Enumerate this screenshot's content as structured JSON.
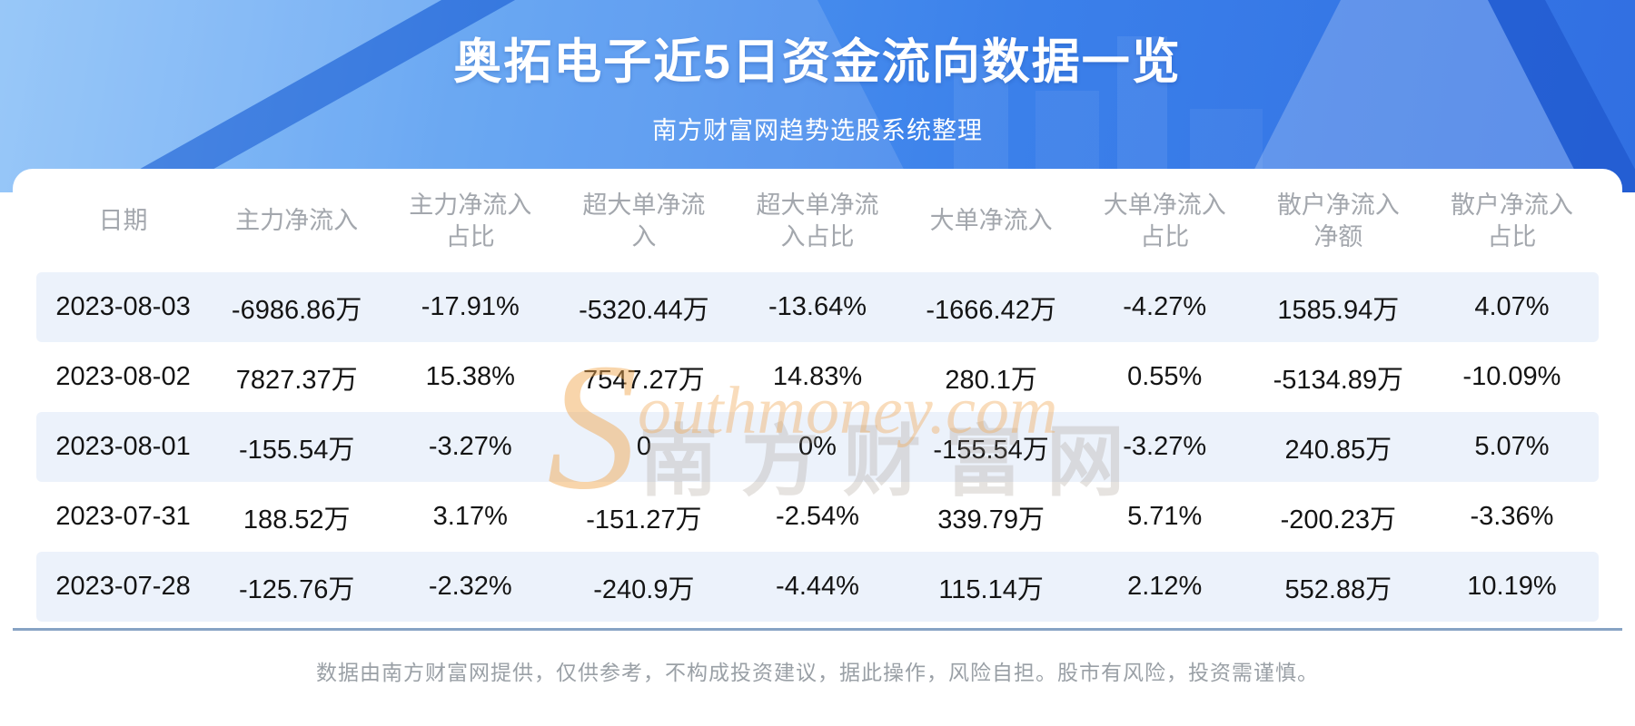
{
  "header": {
    "title": "奥拓电子近5日资金流向数据一览",
    "subtitle": "南方财富网趋势选股系统整理"
  },
  "table": {
    "columns": [
      "日期",
      "主力净流入",
      "主力净流入\n占比",
      "超大单净流\n入",
      "超大单净流\n入占比",
      "大单净流入",
      "大单净流入\n占比",
      "散户净流入\n净额",
      "散户净流入\n占比"
    ],
    "rows": [
      [
        "2023-08-03",
        "-6986.86万",
        "-17.91%",
        "-5320.44万",
        "-13.64%",
        "-1666.42万",
        "-4.27%",
        "1585.94万",
        "4.07%"
      ],
      [
        "2023-08-02",
        "7827.37万",
        "15.38%",
        "7547.27万",
        "14.83%",
        "280.1万",
        "0.55%",
        "-5134.89万",
        "-10.09%"
      ],
      [
        "2023-08-01",
        "-155.54万",
        "-3.27%",
        "0",
        "0%",
        "-155.54万",
        "-3.27%",
        "240.85万",
        "5.07%"
      ],
      [
        "2023-07-31",
        "188.52万",
        "3.17%",
        "-151.27万",
        "-2.54%",
        "339.79万",
        "5.71%",
        "-200.23万",
        "-3.36%"
      ],
      [
        "2023-07-28",
        "-125.76万",
        "-2.32%",
        "-240.9万",
        "-4.44%",
        "115.14万",
        "2.12%",
        "552.88万",
        "10.19%"
      ]
    ]
  },
  "watermark": {
    "cn": "南方财富网",
    "en_initial": "S",
    "en_rest": "outhmoney.com"
  },
  "footer": {
    "disclaimer": "数据由南方财富网提供，仅供参考，不构成投资建议，据此操作，风险自担。股市有风险，投资需谨慎。"
  },
  "colors": {
    "banner_blue": "#3b80ea",
    "banner_blue_light": "#7fbaf7",
    "stripe_row": "#ecf2fb",
    "divider": "#87a3c4",
    "header_text": "#a3a7ad",
    "cell_text": "#141414",
    "watermark_orange": "#f0ac5c",
    "title_text": "#ffffff"
  },
  "chart_data": {
    "type": "table",
    "title": "奥拓电子近5日资金流向数据一览",
    "subtitle": "南方财富网趋势选股系统整理",
    "categories": [
      "2023-08-03",
      "2023-08-02",
      "2023-08-01",
      "2023-07-31",
      "2023-07-28"
    ],
    "series": [
      {
        "name": "主力净流入(万)",
        "values": [
          -6986.86,
          7827.37,
          -155.54,
          188.52,
          -125.76
        ]
      },
      {
        "name": "主力净流入占比(%)",
        "values": [
          -17.91,
          15.38,
          -3.27,
          3.17,
          -2.32
        ]
      },
      {
        "name": "超大单净流入(万)",
        "values": [
          -5320.44,
          7547.27,
          0,
          -151.27,
          -240.9
        ]
      },
      {
        "name": "超大单净流入占比(%)",
        "values": [
          -13.64,
          14.83,
          0,
          -2.54,
          -4.44
        ]
      },
      {
        "name": "大单净流入(万)",
        "values": [
          -1666.42,
          280.1,
          -155.54,
          339.79,
          115.14
        ]
      },
      {
        "name": "大单净流入占比(%)",
        "values": [
          -4.27,
          0.55,
          -3.27,
          5.71,
          2.12
        ]
      },
      {
        "name": "散户净流入净额(万)",
        "values": [
          1585.94,
          -5134.89,
          240.85,
          -200.23,
          552.88
        ]
      },
      {
        "name": "散户净流入占比(%)",
        "values": [
          4.07,
          -10.09,
          5.07,
          -3.36,
          10.19
        ]
      }
    ],
    "legend_position": "none",
    "grid": false
  }
}
